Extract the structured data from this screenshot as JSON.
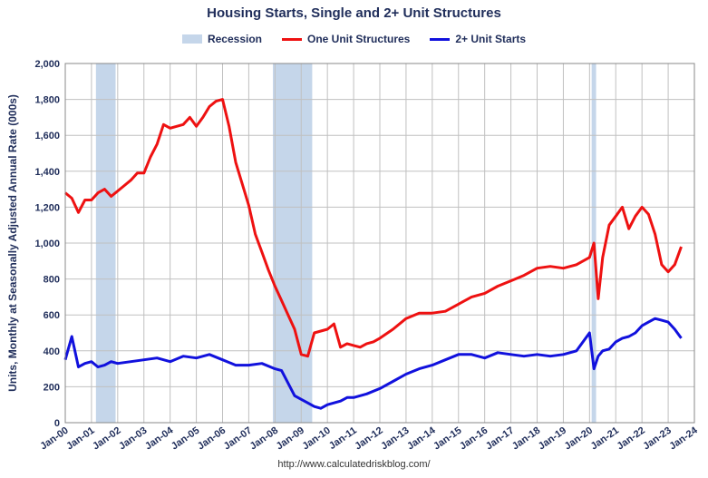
{
  "chart_data": {
    "type": "line",
    "title": "Housing Starts, Single and 2+ Unit Structures",
    "ylabel": "Units, Monthly at Seasonally Adjusted Annual Rate (000s)",
    "xlabel": "",
    "ylim": [
      0,
      2000
    ],
    "yticks": [
      "0",
      "200",
      "400",
      "600",
      "800",
      "1,000",
      "1,200",
      "1,400",
      "1,600",
      "1,800",
      "2,000"
    ],
    "ytick_values": [
      0,
      200,
      400,
      600,
      800,
      1000,
      1200,
      1400,
      1600,
      1800,
      2000
    ],
    "xlim": [
      2000.0,
      2024.0
    ],
    "xticks": [
      "Jan-00",
      "Jan-01",
      "Jan-02",
      "Jan-03",
      "Jan-04",
      "Jan-05",
      "Jan-06",
      "Jan-07",
      "Jan-08",
      "Jan-09",
      "Jan-10",
      "Jan-11",
      "Jan-12",
      "Jan-13",
      "Jan-14",
      "Jan-15",
      "Jan-16",
      "Jan-17",
      "Jan-18",
      "Jan-19",
      "Jan-20",
      "Jan-21",
      "Jan-22",
      "Jan-23",
      "Jan-24"
    ],
    "grid": true,
    "legend_position": "top-center",
    "legend": {
      "recession_label": "Recession",
      "one_unit_label": "One Unit Structures",
      "multi_unit_label": "2+ Unit Starts"
    },
    "recessions": [
      {
        "start": 2001.17,
        "end": 2001.92
      },
      {
        "start": 2007.92,
        "end": 2009.42
      },
      {
        "start": 2020.08,
        "end": 2020.25
      }
    ],
    "colors": {
      "recession": "#c5d6ea",
      "one_unit": "#ee1111",
      "multi_unit": "#1111dd",
      "text": "#1f2d5a"
    },
    "series": [
      {
        "name": "One Unit Structures",
        "key": "one_unit",
        "x": [
          2000.0,
          2000.25,
          2000.5,
          2000.75,
          2001.0,
          2001.25,
          2001.5,
          2001.75,
          2002.0,
          2002.25,
          2002.5,
          2002.75,
          2003.0,
          2003.25,
          2003.5,
          2003.75,
          2004.0,
          2004.25,
          2004.5,
          2004.75,
          2005.0,
          2005.25,
          2005.5,
          2005.75,
          2006.0,
          2006.25,
          2006.5,
          2006.75,
          2007.0,
          2007.25,
          2007.5,
          2007.75,
          2008.0,
          2008.25,
          2008.5,
          2008.75,
          2009.0,
          2009.25,
          2009.5,
          2009.75,
          2010.0,
          2010.25,
          2010.5,
          2010.75,
          2011.0,
          2011.25,
          2011.5,
          2011.75,
          2012.0,
          2012.5,
          2013.0,
          2013.5,
          2014.0,
          2014.5,
          2015.0,
          2015.5,
          2016.0,
          2016.5,
          2017.0,
          2017.5,
          2018.0,
          2018.5,
          2019.0,
          2019.5,
          2020.0,
          2020.17,
          2020.33,
          2020.5,
          2020.75,
          2021.0,
          2021.25,
          2021.5,
          2021.75,
          2022.0,
          2022.25,
          2022.5,
          2022.75,
          2023.0,
          2023.25,
          2023.5
        ],
        "values": [
          1280,
          1250,
          1170,
          1240,
          1240,
          1280,
          1300,
          1260,
          1290,
          1320,
          1350,
          1390,
          1390,
          1480,
          1550,
          1660,
          1640,
          1650,
          1660,
          1700,
          1650,
          1700,
          1760,
          1790,
          1800,
          1650,
          1450,
          1330,
          1210,
          1050,
          950,
          850,
          760,
          680,
          600,
          520,
          380,
          370,
          500,
          510,
          520,
          550,
          420,
          440,
          430,
          420,
          440,
          450,
          470,
          520,
          580,
          610,
          610,
          620,
          660,
          700,
          720,
          760,
          790,
          820,
          860,
          870,
          860,
          880,
          920,
          1000,
          690,
          920,
          1100,
          1150,
          1200,
          1080,
          1150,
          1200,
          1160,
          1050,
          880,
          840,
          880,
          980
        ]
      },
      {
        "name": "2+ Unit Starts",
        "key": "multi_unit",
        "x": [
          2000.0,
          2000.25,
          2000.5,
          2000.75,
          2001.0,
          2001.25,
          2001.5,
          2001.75,
          2002.0,
          2002.5,
          2003.0,
          2003.5,
          2004.0,
          2004.5,
          2005.0,
          2005.5,
          2006.0,
          2006.5,
          2007.0,
          2007.5,
          2008.0,
          2008.25,
          2008.5,
          2008.75,
          2009.0,
          2009.25,
          2009.5,
          2009.75,
          2010.0,
          2010.25,
          2010.5,
          2010.75,
          2011.0,
          2011.5,
          2012.0,
          2012.5,
          2013.0,
          2013.5,
          2014.0,
          2014.5,
          2015.0,
          2015.5,
          2016.0,
          2016.5,
          2017.0,
          2017.5,
          2018.0,
          2018.5,
          2019.0,
          2019.5,
          2020.0,
          2020.17,
          2020.33,
          2020.5,
          2020.75,
          2021.0,
          2021.25,
          2021.5,
          2021.75,
          2022.0,
          2022.25,
          2022.5,
          2022.75,
          2023.0,
          2023.25,
          2023.5
        ],
        "values": [
          350,
          480,
          310,
          330,
          340,
          310,
          320,
          340,
          330,
          340,
          350,
          360,
          340,
          370,
          360,
          380,
          350,
          320,
          320,
          330,
          300,
          290,
          220,
          150,
          130,
          110,
          90,
          80,
          100,
          110,
          120,
          140,
          140,
          160,
          190,
          230,
          270,
          300,
          320,
          350,
          380,
          380,
          360,
          390,
          380,
          370,
          380,
          370,
          380,
          400,
          500,
          300,
          370,
          400,
          410,
          450,
          470,
          480,
          500,
          540,
          560,
          580,
          570,
          560,
          520,
          470
        ]
      }
    ],
    "source": "http://www.calculatedriskblog.com/"
  }
}
